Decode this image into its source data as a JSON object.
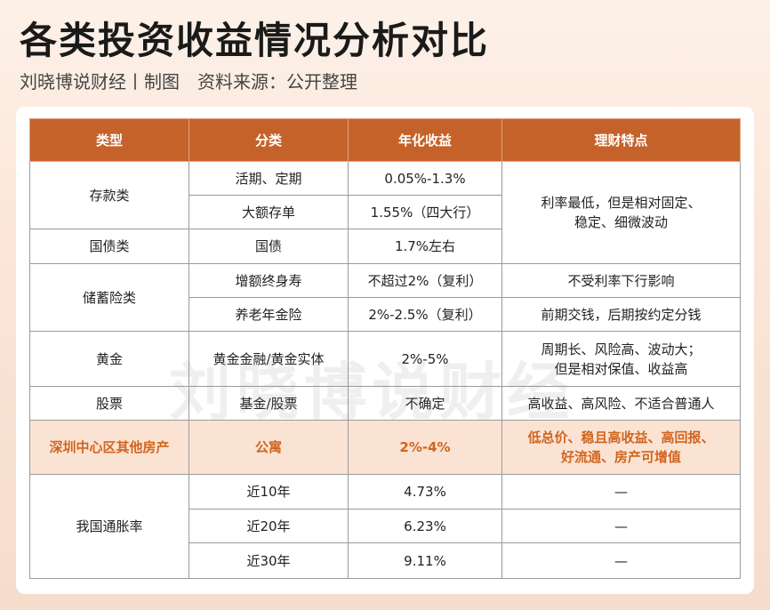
{
  "header": {
    "title": "各类投资收益情况分析对比",
    "subtitle": "刘晓博说财经丨制图　资料来源：公开整理"
  },
  "watermark": "刘晓博说财经",
  "table": {
    "columns": [
      "类型",
      "分类",
      "年化收益",
      "理财特点"
    ],
    "rows": [
      [
        "存款类",
        "活期、定期",
        "0.05%-1.3%",
        [
          "利率最低，但是相对固定、",
          "稳定、细微波动"
        ]
      ],
      [
        "大额存单",
        "1.55%（四大行）"
      ],
      [
        "国债类",
        "国债",
        "1.7%左右"
      ],
      [
        "储蓄险类",
        "增额终身寿",
        "不超过2%（复利）",
        "不受利率下行影响"
      ],
      [
        "养老年金险",
        "2%-2.5%（复利）",
        "前期交钱，后期按约定分钱"
      ],
      [
        "黄金",
        "黄金金融/黄金实体",
        "2%-5%",
        [
          "周期长、风险高、波动大；",
          "但是相对保值、收益高"
        ]
      ],
      [
        "股票",
        "基金/股票",
        "不确定",
        "高收益、高风险、不适合普通人"
      ],
      [
        "深圳中心区其他房产",
        "公寓",
        "2%-4%",
        [
          "低总价、稳且高收益、高回报、",
          "好流通、房产可增值"
        ]
      ],
      [
        "我国通胀率",
        "近10年",
        "4.73%",
        "—"
      ],
      [
        "近20年",
        "6.23%",
        "—"
      ],
      [
        "近30年",
        "9.11%",
        "—"
      ]
    ]
  }
}
